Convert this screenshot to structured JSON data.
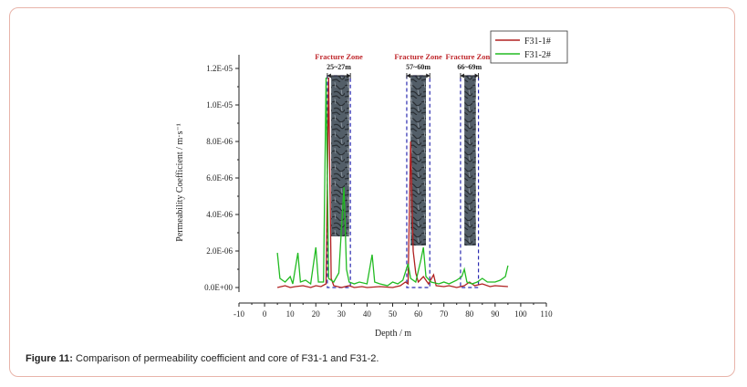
{
  "caption": {
    "label": "Figure 11:",
    "text": " Comparison of permeability coefficient and core of F31-1 and F31-2."
  },
  "chart_data": {
    "type": "line",
    "xlabel": "Depth / m",
    "ylabel": "Permeability Coefficient / m·s⁻¹",
    "xlim": [
      -10,
      110
    ],
    "ylim": [
      0,
      1.3e-05
    ],
    "xticks": [
      -10,
      0,
      10,
      20,
      30,
      40,
      50,
      60,
      70,
      80,
      90,
      100,
      110
    ],
    "yticks": [
      0,
      2e-06,
      4e-06,
      6e-06,
      8e-06,
      1e-05,
      1.2e-05
    ],
    "ytick_labels": [
      "0.0E+00",
      "2.0E-06",
      "4.0E-06",
      "6.0E-06",
      "8.0E-06",
      "1.0E-05",
      "1.2E-05"
    ],
    "legend_position": "top-right",
    "series": [
      {
        "name": "F31-1#",
        "color": "#b02020",
        "points": [
          [
            5,
            0.0
          ],
          [
            8,
            1e-07
          ],
          [
            10,
            0.0
          ],
          [
            12,
            5e-08
          ],
          [
            15,
            1e-07
          ],
          [
            18,
            0.0
          ],
          [
            20,
            1e-07
          ],
          [
            22,
            5e-08
          ],
          [
            24,
            2e-07
          ],
          [
            25,
            1.15e-05
          ],
          [
            26,
            5e-07
          ],
          [
            27,
            1e-07
          ],
          [
            30,
            0.0
          ],
          [
            33,
            1e-07
          ],
          [
            35,
            0.0
          ],
          [
            38,
            5e-08
          ],
          [
            40,
            0.0
          ],
          [
            45,
            5e-08
          ],
          [
            50,
            0.0
          ],
          [
            53,
            1e-07
          ],
          [
            55,
            3e-07
          ],
          [
            56,
            2e-07
          ],
          [
            57,
            8e-06
          ],
          [
            58,
            2e-06
          ],
          [
            59,
            8e-07
          ],
          [
            60,
            3e-07
          ],
          [
            62,
            6e-07
          ],
          [
            64,
            2e-07
          ],
          [
            66,
            7e-07
          ],
          [
            67,
            1e-07
          ],
          [
            70,
            5e-08
          ],
          [
            72,
            1e-07
          ],
          [
            75,
            0.0
          ],
          [
            78,
            1e-07
          ],
          [
            80,
            3e-07
          ],
          [
            82,
            1e-07
          ],
          [
            85,
            2e-07
          ],
          [
            88,
            5e-08
          ],
          [
            90,
            1e-07
          ],
          [
            95,
            5e-08
          ]
        ]
      },
      {
        "name": "F31-2#",
        "color": "#22bb22",
        "points": [
          [
            5,
            1.9e-06
          ],
          [
            6,
            5e-07
          ],
          [
            8,
            3e-07
          ],
          [
            10,
            6e-07
          ],
          [
            11,
            2e-07
          ],
          [
            13,
            1.9e-06
          ],
          [
            14,
            3e-07
          ],
          [
            16,
            4e-07
          ],
          [
            18,
            2e-07
          ],
          [
            20,
            2.2e-06
          ],
          [
            21,
            3e-07
          ],
          [
            23,
            3e-07
          ],
          [
            24,
            1.15e-05
          ],
          [
            25,
            5e-07
          ],
          [
            27,
            3e-07
          ],
          [
            29,
            8e-07
          ],
          [
            31,
            5.5e-06
          ],
          [
            32,
            1e-06
          ],
          [
            33,
            3e-07
          ],
          [
            35,
            2e-07
          ],
          [
            37,
            3e-07
          ],
          [
            40,
            2e-07
          ],
          [
            42,
            1.8e-06
          ],
          [
            43,
            3e-07
          ],
          [
            45,
            2e-07
          ],
          [
            48,
            1e-07
          ],
          [
            50,
            3e-07
          ],
          [
            52,
            2e-07
          ],
          [
            54,
            4e-07
          ],
          [
            56,
            1.3e-06
          ],
          [
            57,
            5e-07
          ],
          [
            59,
            3e-07
          ],
          [
            61,
            1.5e-06
          ],
          [
            62,
            2.2e-06
          ],
          [
            63,
            6e-07
          ],
          [
            65,
            3e-07
          ],
          [
            68,
            2e-07
          ],
          [
            70,
            3e-07
          ],
          [
            72,
            2e-07
          ],
          [
            75,
            4e-07
          ],
          [
            77,
            6e-07
          ],
          [
            78,
            1e-06
          ],
          [
            79,
            3e-07
          ],
          [
            81,
            2e-07
          ],
          [
            83,
            3e-07
          ],
          [
            85,
            5e-07
          ],
          [
            87,
            3e-07
          ],
          [
            90,
            3e-07
          ],
          [
            92,
            4e-07
          ],
          [
            94,
            6e-07
          ],
          [
            95,
            1.2e-06
          ]
        ]
      }
    ],
    "annotations": [
      {
        "title": "Fracture Zone",
        "range": "25~27m",
        "x1": 24.5,
        "x2": 33.5
      },
      {
        "title": "Fracture Zone",
        "range": "57~60m",
        "x1": 55.5,
        "x2": 64.5
      },
      {
        "title": "Fracture Zone",
        "range": "66~69m",
        "x1": 76.5,
        "x2": 83.5
      }
    ],
    "annotation_color": "#c0282d",
    "box_color": "#2a2ab0"
  }
}
